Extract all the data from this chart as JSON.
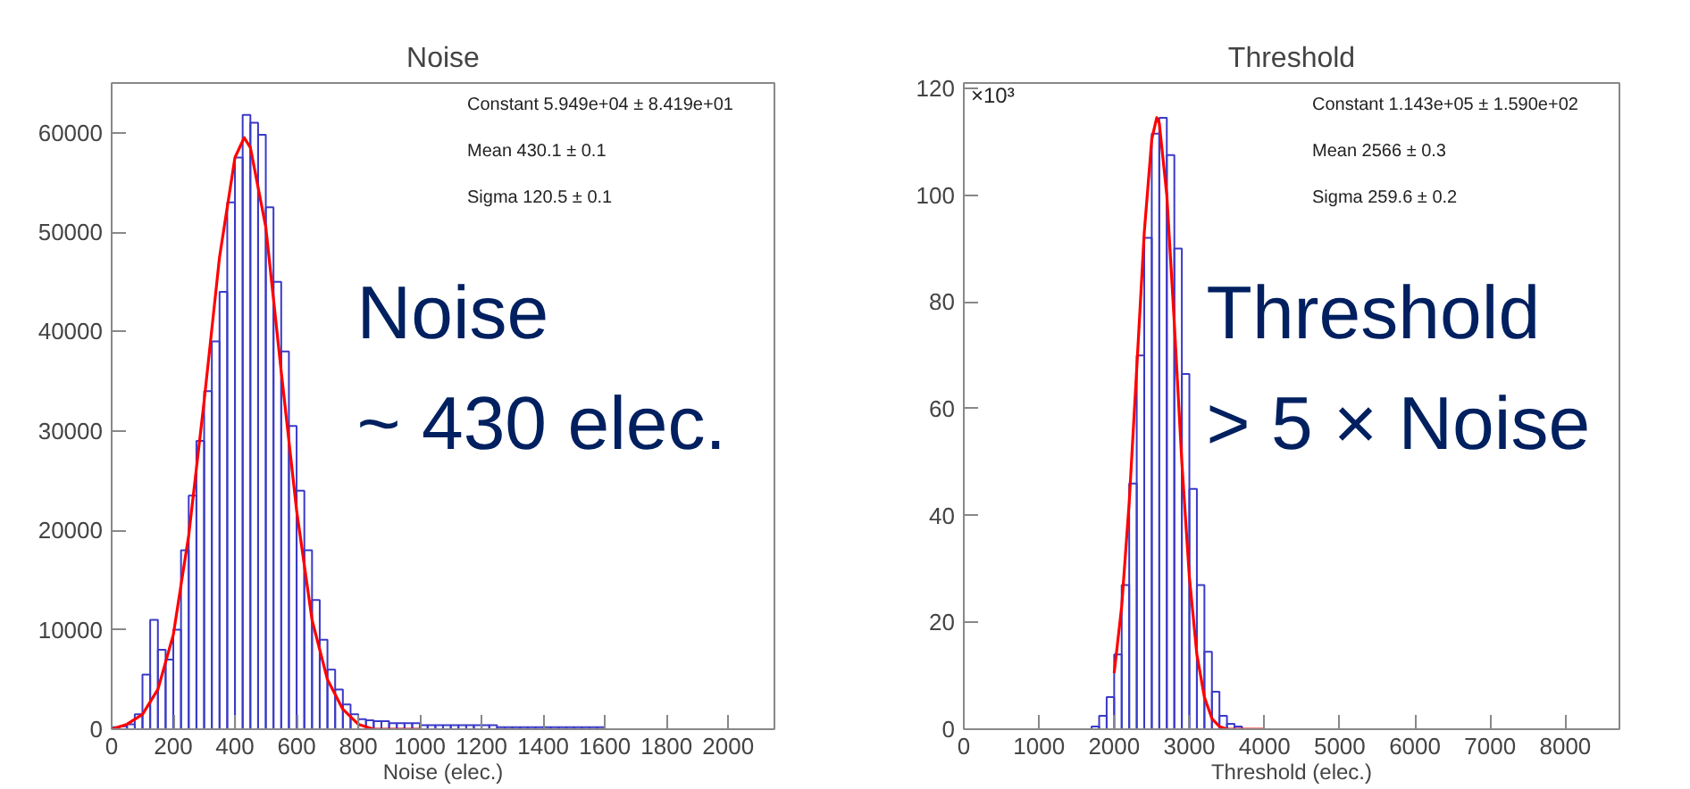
{
  "chart_data": [
    {
      "type": "histogram",
      "title": "Noise",
      "xlabel": "Noise (elec.)",
      "color": "#3a3ac8",
      "bins": [
        0,
        25,
        50,
        75,
        100,
        125,
        150,
        175,
        200,
        225,
        250,
        275,
        300,
        325,
        350,
        375,
        400,
        425,
        450,
        475,
        500,
        525,
        550,
        575,
        600,
        625,
        650,
        675,
        700,
        725,
        750,
        775,
        800,
        825,
        850,
        875,
        900,
        925,
        950,
        975,
        1000,
        1025,
        1050,
        1075,
        1100,
        1125,
        1150,
        1175,
        1200,
        1225,
        1250,
        1275,
        1300,
        1325,
        1350,
        1375,
        1400,
        1425,
        1450,
        1475,
        1500,
        1525,
        1550,
        1575,
        1600
      ],
      "values": [
        200,
        300,
        500,
        1500,
        5500,
        11000,
        8000,
        7000,
        10000,
        18000,
        23500,
        29000,
        34000,
        39000,
        44000,
        53000,
        57500,
        61800,
        61000,
        59800,
        52500,
        45000,
        38000,
        30500,
        24000,
        18000,
        13000,
        9000,
        6000,
        4000,
        2500,
        1500,
        1000,
        900,
        800,
        800,
        600,
        600,
        600,
        600,
        400,
        400,
        400,
        400,
        400,
        400,
        400,
        400,
        400,
        400,
        200,
        200,
        200,
        200,
        200,
        200,
        200,
        200,
        200,
        200,
        200,
        200,
        200,
        200
      ],
      "series": [
        {
          "type": "line",
          "color": "#ff0000",
          "x": [
            0,
            50,
            100,
            150,
            200,
            250,
            300,
            350,
            400,
            430,
            450,
            500,
            550,
            600,
            650,
            700,
            750,
            800,
            850,
            900,
            1000
          ],
          "values": [
            0,
            500,
            1500,
            4000,
            9500,
            19500,
            33000,
            47500,
            57500,
            59500,
            58500,
            50500,
            36000,
            22000,
            11000,
            5000,
            2000,
            500,
            0,
            0,
            0
          ]
        }
      ],
      "xlim": [
        0,
        2150
      ],
      "xticks": [
        0,
        200,
        400,
        600,
        800,
        1000,
        1200,
        1400,
        1600,
        1800,
        2000
      ],
      "ylim": [
        0,
        65000
      ],
      "yticks": [
        0,
        10000,
        20000,
        30000,
        40000,
        50000,
        60000
      ],
      "grid": false,
      "annotations": [
        "Constant 5.949e+04 ± 8.419e+01",
        "Mean 430.1 ± 0.1",
        "Sigma 120.5 ± 0.1",
        "Noise",
        "~ 430 elec."
      ]
    },
    {
      "type": "histogram",
      "title": "Threshold",
      "xlabel": "Threshold (elec.)",
      "color": "#3a3ac8",
      "bins": [
        1600,
        1700,
        1800,
        1900,
        2000,
        2100,
        2200,
        2300,
        2400,
        2500,
        2600,
        2700,
        2800,
        2900,
        3000,
        3100,
        3200,
        3300,
        3400,
        3500,
        3600,
        3700,
        3800,
        3900,
        4000
      ],
      "values": [
        0,
        0.5,
        2.5,
        6,
        14,
        27,
        46,
        70,
        92,
        111.5,
        114.5,
        107.5,
        90,
        66.5,
        45,
        27,
        14.5,
        7,
        2.5,
        1,
        0.5,
        0,
        0,
        0
      ],
      "series": [
        {
          "type": "line",
          "color": "#ff0000",
          "x": [
            2000,
            2100,
            2200,
            2300,
            2400,
            2500,
            2566,
            2600,
            2700,
            2800,
            2900,
            3000,
            3100,
            3200,
            3300,
            3400,
            3500,
            3700,
            4000
          ],
          "values": [
            10.5,
            23,
            42.5,
            67.5,
            93,
            110.5,
            114.5,
            113.5,
            100,
            76,
            50,
            28.5,
            14,
            6,
            2,
            0.5,
            0,
            0,
            0
          ]
        }
      ],
      "xlim": [
        0,
        8720
      ],
      "xticks": [
        0,
        1000,
        2000,
        3000,
        4000,
        5000,
        6000,
        7000,
        8000
      ],
      "ylim": [
        0,
        121
      ],
      "yticks": [
        0,
        20,
        40,
        60,
        80,
        100,
        120
      ],
      "grid": false,
      "annotations": [
        "Constant 1.143e+05 ± 1.590e+02",
        "Mean 2566 ± 0.3",
        "Sigma 259.6 ± 0.2",
        "Threshold",
        "> 5 × Noise",
        "×10³"
      ]
    }
  ]
}
